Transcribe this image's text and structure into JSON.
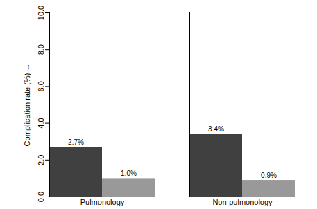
{
  "chart_data": {
    "type": "bar",
    "categories": [
      "Pulmonology",
      "Non-pulmonology"
    ],
    "series": [
      {
        "color": "#404040",
        "values": [
          2.7,
          3.4
        ],
        "value_labels": [
          "2.7%",
          "3.4%"
        ]
      },
      {
        "color": "#999999",
        "values": [
          1.0,
          0.9
        ],
        "value_labels": [
          "1.0%",
          "0.9%"
        ]
      }
    ],
    "y_label": "Complication rate (%)",
    "ylim": [
      0,
      10
    ],
    "yticks": [
      {
        "value": 0,
        "label": "0.0"
      },
      {
        "value": 2,
        "label": "2.0"
      },
      {
        "value": 4,
        "label": "4.0"
      },
      {
        "value": 6,
        "label": "6.0"
      },
      {
        "value": 8,
        "label": "8.0"
      },
      {
        "value": 10,
        "label": "10.0"
      }
    ],
    "grid": false,
    "data_labels": true
  }
}
